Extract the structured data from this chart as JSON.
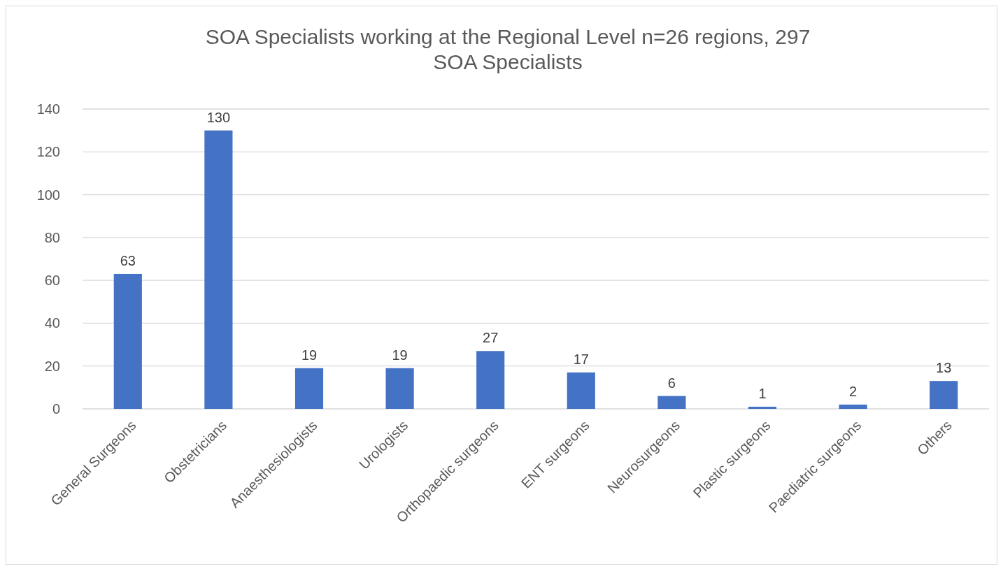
{
  "chart_data": {
    "type": "bar",
    "title": "SOA Specialists working at the Regional Level n=26 regions, 297\nSOA Specialists",
    "categories": [
      "General Surgeons",
      "Obstetricians",
      "Anaesthesiologists",
      "Urologists",
      "Orthopaedic surgeons",
      "ENT surgeons",
      "Neurosurgeons",
      "Plastic surgeons",
      "Paediatric surgeons",
      "Others"
    ],
    "values": [
      63,
      130,
      19,
      19,
      27,
      17,
      6,
      1,
      2,
      13
    ],
    "color": "#4472c4",
    "ylim": [
      0,
      140
    ],
    "yticks": [
      0,
      20,
      40,
      60,
      80,
      100,
      120,
      140
    ],
    "grid": "y",
    "data_labels": true
  }
}
